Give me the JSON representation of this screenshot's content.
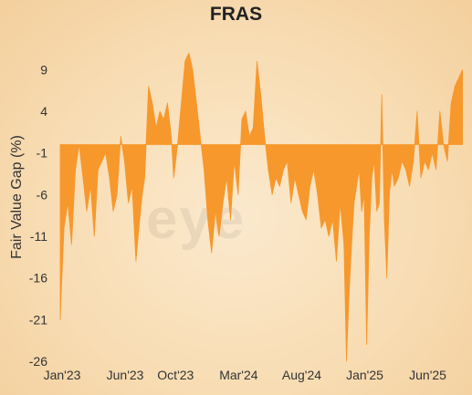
{
  "chart_data": {
    "type": "area",
    "title": "FRAS",
    "ylabel": "Fair Value Gap (%)",
    "xlabel": "",
    "ylim": [
      -26,
      11
    ],
    "yticks": [
      9,
      4,
      -1,
      -6,
      -11,
      -16,
      -21,
      -26
    ],
    "xticks": [
      {
        "label": "Jan'23",
        "x": 0
      },
      {
        "label": "Jun'23",
        "x": 5
      },
      {
        "label": "Oct'23",
        "x": 9
      },
      {
        "label": "Mar'24",
        "x": 14
      },
      {
        "label": "Aug'24",
        "x": 19
      },
      {
        "label": "Jan'25",
        "x": 24
      },
      {
        "label": "Jun'25",
        "x": 29
      }
    ],
    "baseline": 0,
    "fill_color": "#f7982c",
    "grid": false,
    "series": [
      {
        "x": [
          0,
          0.1,
          0.3,
          0.6,
          0.9,
          1.2,
          1.5,
          1.8,
          2.1,
          2.4,
          2.7,
          3.0,
          3.3,
          3.6,
          3.9,
          4.2,
          4.5,
          4.8,
          5.1,
          5.4,
          5.7,
          6.0,
          6.3,
          6.5,
          6.7,
          7.0,
          7.3,
          7.6,
          7.9,
          8.2,
          8.5,
          8.8,
          9.0,
          9.3,
          9.6,
          9.9,
          10.2,
          10.5,
          10.8,
          11.1,
          11.4,
          11.7,
          12.0,
          12.3,
          12.6,
          12.9,
          13.2,
          13.5,
          13.8,
          14.1,
          14.4,
          14.7,
          15.0,
          15.3,
          15.6,
          15.9,
          16.2,
          16.5,
          16.8,
          17.1,
          17.4,
          17.7,
          18.0,
          18.3,
          18.6,
          18.9,
          19.2,
          19.5,
          19.8,
          20.1,
          20.4,
          20.7,
          21.0,
          21.3,
          21.6,
          21.9,
          22.2,
          22.5,
          22.7,
          22.9,
          23.1,
          23.3,
          23.5,
          23.7,
          23.9,
          24.1,
          24.3,
          24.5,
          24.7,
          24.9,
          25.1,
          25.3,
          25.5,
          25.7,
          25.9,
          26.1,
          26.3,
          26.5,
          26.8,
          27.1,
          27.4,
          27.7,
          28.0,
          28.3,
          28.6,
          28.9,
          29.2,
          29.5,
          29.8,
          30.1,
          30.4,
          30.7,
          31.0,
          31.3,
          31.6,
          31.9
        ],
        "values": [
          -21,
          -17,
          -10,
          -7,
          -12,
          -3,
          0,
          -4,
          -8,
          -5,
          -11,
          -3,
          -2,
          -1,
          -4,
          -8,
          -6,
          1,
          -2,
          -7,
          -5,
          -14,
          -9,
          -6,
          -4,
          7,
          5,
          2,
          4,
          3,
          5,
          1,
          -4,
          0,
          5,
          10,
          11,
          9,
          5,
          1,
          -3,
          -9,
          -13,
          -8,
          -11,
          -7,
          -4,
          -9,
          -2,
          -6,
          3,
          4,
          1,
          2,
          10,
          6,
          1,
          -3,
          -6,
          -4,
          -5,
          -3,
          -2,
          -7,
          -4,
          -6,
          -8,
          -9,
          -5,
          -3,
          -6,
          -10,
          -9,
          -11,
          -9,
          -14,
          -7,
          -12,
          -26,
          -18,
          -12,
          -7,
          -5,
          -3,
          -8,
          -6,
          -24,
          -11,
          -4,
          -2,
          -8,
          -7,
          6,
          -9,
          -16,
          -6,
          -3,
          -5,
          -4,
          -2,
          -3,
          -5,
          -2,
          4,
          -4,
          -2,
          -3,
          -1,
          -3,
          4,
          0,
          -2,
          5,
          7,
          8,
          9
        ]
      }
    ],
    "watermark": "eye"
  }
}
